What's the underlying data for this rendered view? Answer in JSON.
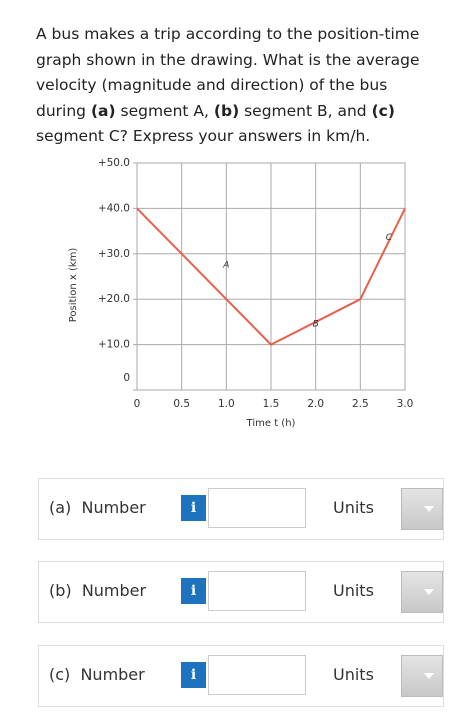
{
  "question": [
    "A bus makes a trip according to the position-time graph shown in the drawing. What is the average velocity (magnitude and direction) of the bus during ",
    "(a)",
    " segment A, ",
    "(b)",
    " segment B, and ",
    "(c)",
    " segment C? Express your answers in km/h."
  ],
  "chart_data": {
    "type": "line",
    "x": [
      0,
      1.5,
      2.5,
      3.0
    ],
    "values": [
      40,
      10,
      20,
      40
    ],
    "color": "#e8604c",
    "xlim": [
      0,
      3.0
    ],
    "ylim": [
      0,
      50
    ],
    "xticks": [
      0,
      0.5,
      {
        "value": 1,
        "label": "1.0"
      },
      1.5,
      {
        "value": 2,
        "label": "2.0"
      },
      2.5,
      {
        "value": 3,
        "label": "3.0"
      }
    ],
    "yticks": [
      0,
      {
        "value": 10,
        "label": "+10.0"
      },
      {
        "value": 20,
        "label": "+20.0"
      },
      {
        "value": 30,
        "label": "+30.0"
      },
      {
        "value": 40,
        "label": "+40.0"
      },
      {
        "value": 50,
        "label": "+50.0"
      }
    ],
    "xlabel": "Time t (h)",
    "ylabel": "Position x (km)",
    "annotations": [
      "A",
      "B",
      "C"
    ],
    "grid": true
  },
  "form": {
    "rows": [
      {
        "label": "(a)",
        "field": "Number",
        "info": "i",
        "units": "Units"
      },
      {
        "label": "(b)",
        "field": "Number",
        "info": "i",
        "units": "Units"
      },
      {
        "label": "(c)",
        "field": "Number",
        "info": "i",
        "units": "Units"
      }
    ]
  }
}
